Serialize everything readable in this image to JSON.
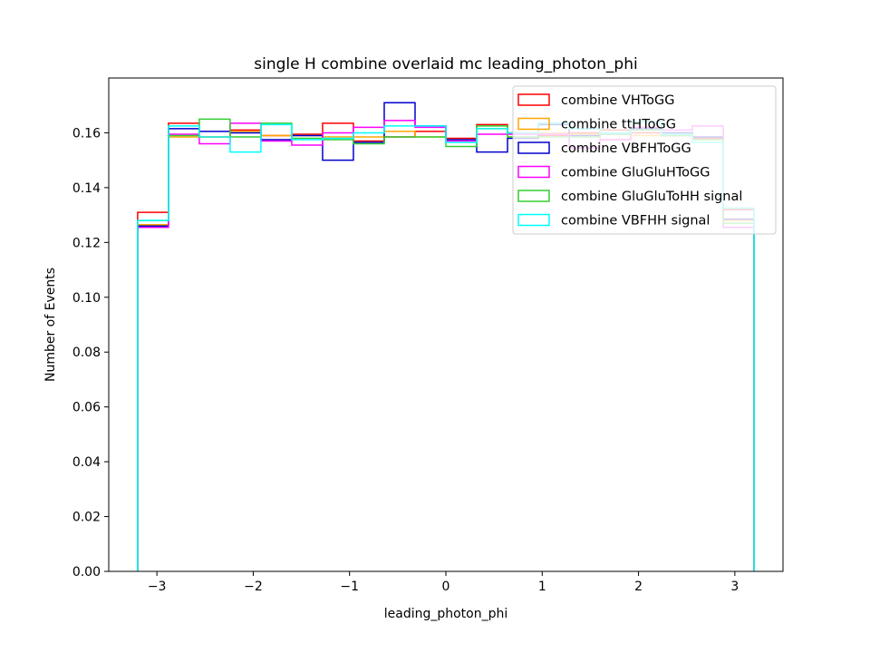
{
  "chart_data": {
    "type": "histogram",
    "title": "single H combine overlaid mc leading_photon_phi",
    "xlabel": "leading_photon_phi",
    "ylabel": "Number of Events",
    "xlim": [
      -3.5,
      3.5
    ],
    "ylim": [
      0,
      0.18
    ],
    "xticks": [
      -3,
      -2,
      -1,
      0,
      1,
      2,
      3
    ],
    "xtick_labels": [
      "−3",
      "−2",
      "−1",
      "0",
      "1",
      "2",
      "3"
    ],
    "yticks": [
      0,
      0.02,
      0.04,
      0.06,
      0.08,
      0.1,
      0.12,
      0.14,
      0.16
    ],
    "ytick_labels": [
      "0.00",
      "0.02",
      "0.04",
      "0.06",
      "0.08",
      "0.10",
      "0.12",
      "0.14",
      "0.16"
    ],
    "legend_position": "top-right",
    "bin_edges": [
      -3.2,
      -2.88,
      -2.56,
      -2.24,
      -1.92,
      -1.6,
      -1.28,
      -0.96,
      -0.64,
      -0.32,
      0.0,
      0.32,
      0.64,
      0.96,
      1.28,
      1.6,
      1.92,
      2.24,
      2.56,
      2.88,
      3.2
    ],
    "series": [
      {
        "name": "combine VHToGG",
        "color": "#ff0000",
        "values": [
          0.131,
          0.1635,
          0.1585,
          0.161,
          0.159,
          0.1595,
          0.1635,
          0.157,
          0.1585,
          0.1605,
          0.158,
          0.163,
          0.16,
          0.159,
          0.16,
          0.161,
          0.16,
          0.159,
          0.158,
          0.132
        ]
      },
      {
        "name": "combine ttHToGG",
        "color": "#ffa500",
        "values": [
          0.1265,
          0.1585,
          0.1585,
          0.1605,
          0.159,
          0.159,
          0.1585,
          0.1585,
          0.1605,
          0.1585,
          0.1575,
          0.1615,
          0.1585,
          0.16,
          0.1595,
          0.1575,
          0.159,
          0.16,
          0.1575,
          0.128
        ]
      },
      {
        "name": "combine VBFHToGG",
        "color": "#0000cd",
        "values": [
          0.126,
          0.1615,
          0.1605,
          0.16,
          0.1575,
          0.159,
          0.15,
          0.1565,
          0.171,
          0.1625,
          0.1575,
          0.153,
          0.158,
          0.163,
          0.159,
          0.1595,
          0.1615,
          0.16,
          0.1585,
          0.1285
        ]
      },
      {
        "name": "combine GluGluHToGG",
        "color": "#ff00ff",
        "values": [
          0.1255,
          0.1595,
          0.156,
          0.1635,
          0.157,
          0.1555,
          0.16,
          0.162,
          0.1645,
          0.162,
          0.157,
          0.1595,
          0.1595,
          0.1595,
          0.1545,
          0.1575,
          0.162,
          0.161,
          0.1625,
          0.1255
        ]
      },
      {
        "name": "combine GluGluToHH signal",
        "color": "#32cd32",
        "values": [
          0.128,
          0.159,
          0.165,
          0.1585,
          0.1635,
          0.158,
          0.1575,
          0.156,
          0.1585,
          0.1585,
          0.155,
          0.1625,
          0.1585,
          0.1585,
          0.1585,
          0.1595,
          0.161,
          0.159,
          0.1575,
          0.127
        ]
      },
      {
        "name": "combine VBFHH signal",
        "color": "#00ffff",
        "values": [
          0.128,
          0.1625,
          0.1585,
          0.153,
          0.163,
          0.1575,
          0.158,
          0.16,
          0.1625,
          0.1625,
          0.1565,
          0.1615,
          0.16,
          0.1635,
          0.1615,
          0.16,
          0.164,
          0.1595,
          0.1565,
          0.1325
        ]
      }
    ]
  }
}
